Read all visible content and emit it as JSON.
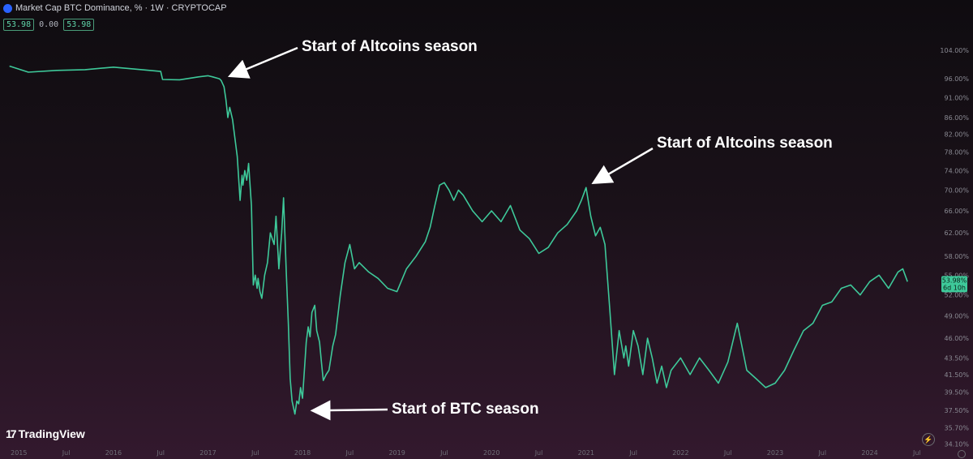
{
  "header": {
    "title": "Market Cap BTC Dominance, % · 1W · CRYPTOCAP",
    "value_box_1": "53.98",
    "value_mid": "0.00",
    "value_box_2": "53.98"
  },
  "brand": {
    "name": "TradingView"
  },
  "chart_data": {
    "type": "line",
    "title": "",
    "xlabel": "",
    "ylabel": "",
    "ylim": [
      33.5,
      112
    ],
    "y_scale": "log",
    "x_ticks": [
      "2015",
      "Jul",
      "2016",
      "Jul",
      "2017",
      "Jul",
      "2018",
      "Jul",
      "2019",
      "Jul",
      "2020",
      "Jul",
      "2021",
      "Jul",
      "2022",
      "Jul",
      "2023",
      "Jul",
      "2024",
      "Jul"
    ],
    "y_ticks": [
      "104.00%",
      "96.00%",
      "91.00%",
      "86.00%",
      "82.00%",
      "78.00%",
      "74.00%",
      "70.00%",
      "66.00%",
      "62.00%",
      "58.00%",
      "55.00%",
      "52.00%",
      "49.00%",
      "46.00%",
      "43.50%",
      "41.50%",
      "39.50%",
      "37.50%",
      "35.70%",
      "34.10%"
    ],
    "last_value_label": "53.98%",
    "countdown_label": "6d 10h",
    "line_color": "#3ec99a",
    "series": [
      {
        "x": [
          2014.9,
          2015.1,
          2015.4,
          2015.7,
          2016.0,
          2016.3,
          2016.5,
          2016.52,
          2016.7,
          2016.9,
          2017.0,
          2017.05,
          2017.12,
          2017.14,
          2017.17,
          2017.19,
          2017.21,
          2017.23,
          2017.26,
          2017.31,
          2017.34,
          2017.36,
          2017.37,
          2017.39,
          2017.41,
          2017.43,
          2017.46,
          2017.48,
          2017.5,
          2017.52,
          2017.53,
          2017.55,
          2017.57,
          2017.6,
          2017.63,
          2017.66,
          2017.7,
          2017.72,
          2017.75,
          2017.78,
          2017.8,
          2017.83,
          2017.85,
          2017.87,
          2017.89,
          2017.92,
          2017.94,
          2017.96,
          2017.98,
          2018.0,
          2018.02,
          2018.04,
          2018.06,
          2018.08,
          2018.1,
          2018.13,
          2018.15,
          2018.18,
          2018.2,
          2018.22,
          2018.25,
          2018.28,
          2018.32,
          2018.35,
          2018.4,
          2018.45,
          2018.5,
          2018.55,
          2018.6,
          2018.7,
          2018.8,
          2018.9,
          2019.0,
          2019.1,
          2019.2,
          2019.3,
          2019.35,
          2019.4,
          2019.45,
          2019.5,
          2019.55,
          2019.6,
          2019.65,
          2019.7,
          2019.8,
          2019.9,
          2020.0,
          2020.1,
          2020.2,
          2020.3,
          2020.4,
          2020.5,
          2020.6,
          2020.7,
          2020.8,
          2020.9,
          2020.95,
          2021.0,
          2021.05,
          2021.1,
          2021.15,
          2021.2,
          2021.25,
          2021.3,
          2021.35,
          2021.4,
          2021.42,
          2021.45,
          2021.5,
          2021.55,
          2021.6,
          2021.65,
          2021.7,
          2021.75,
          2021.8,
          2021.85,
          2021.9,
          2022.0,
          2022.1,
          2022.2,
          2022.3,
          2022.4,
          2022.5,
          2022.6,
          2022.7,
          2022.8,
          2022.9,
          2023.0,
          2023.1,
          2023.2,
          2023.3,
          2023.4,
          2023.5,
          2023.6,
          2023.7,
          2023.8,
          2023.9,
          2024.0,
          2024.1,
          2024.2,
          2024.3,
          2024.35,
          2024.4
        ],
        "y": [
          99.5,
          97.8,
          98.3,
          98.5,
          99.2,
          98.5,
          98.0,
          95.8,
          95.7,
          96.5,
          96.8,
          96.5,
          96.0,
          95.5,
          93.8,
          90.5,
          86.0,
          88.5,
          85.5,
          77.0,
          68.0,
          73.0,
          71.0,
          74.0,
          72.0,
          75.5,
          67.0,
          53.5,
          55.0,
          53.0,
          54.5,
          52.5,
          51.5,
          55.0,
          57.0,
          62.0,
          60.0,
          65.0,
          56.0,
          62.0,
          68.5,
          55.0,
          48.0,
          41.0,
          38.5,
          37.1,
          38.5,
          38.2,
          40.0,
          38.8,
          42.0,
          45.5,
          47.5,
          46.2,
          49.5,
          50.5,
          47.0,
          45.5,
          43.0,
          40.8,
          41.5,
          42.0,
          45.0,
          46.5,
          52.0,
          57.0,
          60.0,
          56.0,
          57.0,
          55.5,
          54.5,
          53.0,
          52.5,
          56.0,
          58.0,
          60.5,
          63.0,
          67.0,
          71.0,
          71.5,
          70.0,
          68.0,
          70.0,
          69.0,
          66.0,
          64.0,
          66.0,
          64.0,
          67.0,
          62.5,
          61.0,
          58.5,
          59.5,
          62.0,
          63.5,
          66.0,
          68.0,
          70.5,
          65.0,
          61.5,
          63.0,
          60.0,
          50.0,
          41.5,
          47.0,
          43.5,
          45.0,
          42.5,
          47.0,
          45.0,
          41.5,
          46.0,
          43.5,
          40.5,
          42.5,
          40.0,
          42.0,
          43.5,
          41.5,
          43.5,
          42.0,
          40.5,
          43.0,
          48.0,
          42.0,
          41.0,
          40.0,
          40.5,
          42.0,
          44.5,
          47.0,
          48.0,
          50.5,
          51.0,
          53.0,
          53.5,
          52.0,
          54.0,
          55.0,
          53.0,
          55.5,
          56.0,
          54.0
        ]
      }
    ],
    "annotations": [
      {
        "text": "Start of Altcoins season",
        "x": 2017.15,
        "y": 95.5
      },
      {
        "text": "Start of Altcoins season",
        "x": 2021.0,
        "y": 70.5
      },
      {
        "text": "Start of BTC season",
        "x": 2018.02,
        "y": 37.1
      }
    ]
  }
}
